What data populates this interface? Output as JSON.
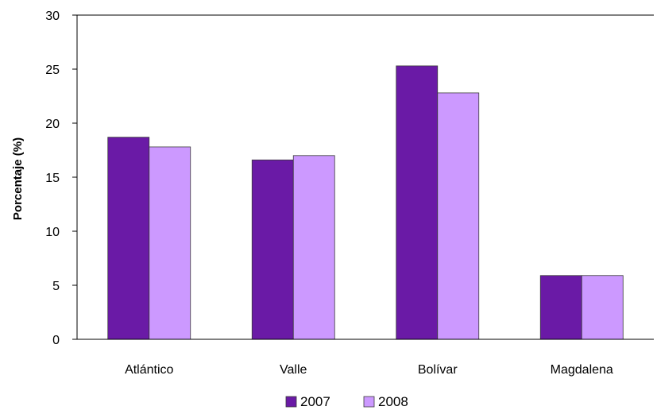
{
  "chart_data": {
    "type": "bar",
    "title": "",
    "xlabel": "",
    "ylabel": "Porcentaje (%)",
    "ylim": [
      0,
      30
    ],
    "yticks": [
      0,
      5,
      10,
      15,
      20,
      25,
      30
    ],
    "categories": [
      "Atlántico",
      "Valle",
      "Bolívar",
      "Magdalena"
    ],
    "series": [
      {
        "name": "2007",
        "values": [
          18.7,
          16.6,
          25.3,
          5.9
        ],
        "color": "#6a1aa6"
      },
      {
        "name": "2008",
        "values": [
          17.8,
          17.0,
          22.8,
          5.9
        ],
        "color": "#cc99ff"
      }
    ],
    "grid": false,
    "legend_position": "bottom"
  }
}
